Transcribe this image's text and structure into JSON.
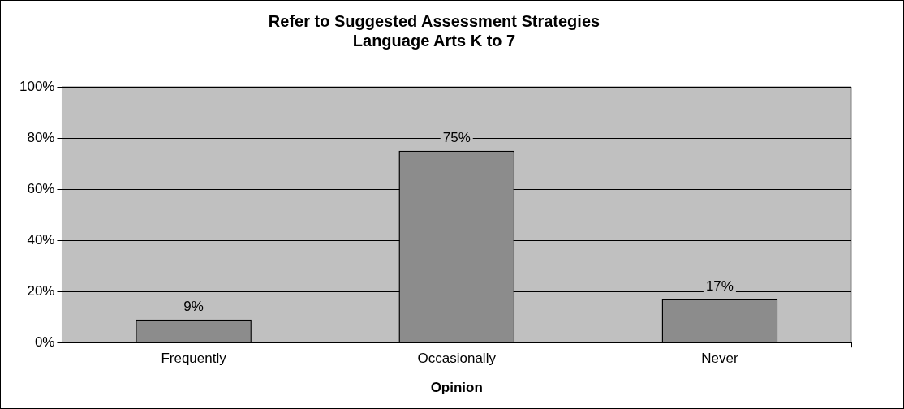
{
  "chart_data": {
    "type": "bar",
    "title": "Refer to Suggested Assessment Strategies\nLanguage Arts K to 7",
    "xlabel": "Opinion",
    "categories": [
      "Frequently",
      "Occasionally",
      "Never"
    ],
    "values": [
      9,
      75,
      17
    ],
    "color": "#8c8c8c",
    "value_labels": [
      "9%",
      "75%",
      "17%"
    ],
    "ylim": [
      0,
      100
    ],
    "yticks": [
      {
        "value": 0,
        "label": "0%"
      },
      {
        "value": 20,
        "label": "20%"
      },
      {
        "value": 40,
        "label": "40%"
      },
      {
        "value": 60,
        "label": "60%"
      },
      {
        "value": 80,
        "label": "80%"
      },
      {
        "value": 100,
        "label": "100%"
      }
    ],
    "grid": "y",
    "legend": false
  }
}
